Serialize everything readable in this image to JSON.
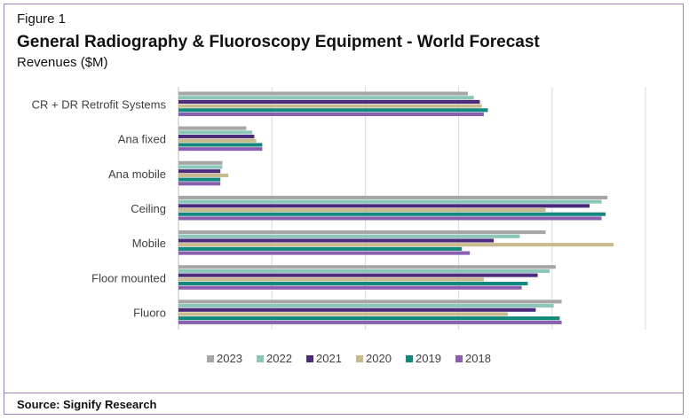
{
  "figure_label": "Figure 1",
  "title": "General Radiography & Fluoroscopy Equipment - World Forecast",
  "subtitle": "Revenues ($M)",
  "source": "Source: Signify Research",
  "chart_data": {
    "type": "bar",
    "orientation": "horizontal",
    "categories": [
      "CR + DR Retrofit Systems",
      "Ana fixed",
      "Ana mobile",
      "Ceiling",
      "Mobile",
      "Floor mounted",
      "Fluoro"
    ],
    "series": [
      {
        "name": "2023",
        "color": "#a6a6a6",
        "values": [
          145,
          34,
          22,
          215,
          184,
          189,
          192
        ]
      },
      {
        "name": "2022",
        "color": "#8cc6bb",
        "values": [
          148,
          37,
          22,
          212,
          171,
          186,
          188
        ]
      },
      {
        "name": "2021",
        "color": "#4b2a7b",
        "values": [
          151,
          38,
          21,
          206,
          158,
          180,
          179
        ]
      },
      {
        "name": "2020",
        "color": "#c9bb8e",
        "values": [
          152,
          39,
          25,
          184,
          218,
          153,
          165
        ]
      },
      {
        "name": "2019",
        "color": "#11877e",
        "values": [
          155,
          42,
          21,
          214,
          142,
          175,
          191
        ]
      },
      {
        "name": "2018",
        "color": "#8a5fb0",
        "values": [
          153,
          42,
          21,
          212,
          146,
          172,
          192
        ]
      }
    ],
    "xlim": [
      0,
      234
    ],
    "grid": true,
    "axis_tick_labels": false,
    "legend_position": "bottom"
  }
}
